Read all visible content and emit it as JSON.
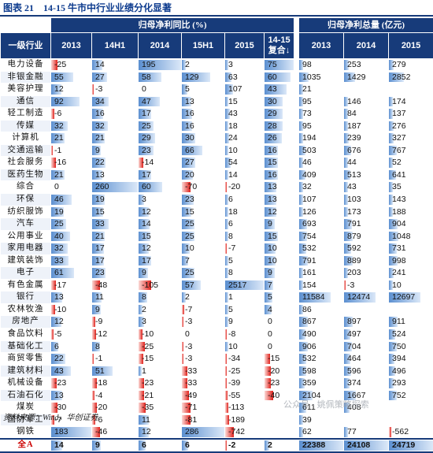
{
  "title": {
    "label": "图表 21",
    "text": "14-15 牛市中行业业绩分化显著"
  },
  "header": {
    "group_left": "归母净利同比 (%)",
    "group_right": "归母净利总量 (亿元)",
    "industry": "一级行业",
    "growth_cols": [
      "2013",
      "14H1",
      "2014",
      "15H1",
      "2015"
    ],
    "compound": "14-15\n复合↓",
    "profit_cols": [
      "2013",
      "2014",
      "2015"
    ]
  },
  "rows": [
    {
      "name": "电力设备",
      "g": [
        -25,
        14,
        195,
        2,
        3
      ],
      "c": 75,
      "p": [
        98,
        253,
        279
      ]
    },
    {
      "name": "非银金融",
      "g": [
        55,
        27,
        58,
        129,
        63
      ],
      "c": 60,
      "p": [
        1035,
        1429,
        2852
      ]
    },
    {
      "name": "美容护理",
      "g": [
        12,
        -3,
        0,
        5,
        107
      ],
      "c": 43,
      "p": [
        21,
        "",
        ""
      ]
    },
    {
      "name": "通信",
      "g": [
        92,
        34,
        47,
        13,
        15
      ],
      "c": 30,
      "p": [
        95,
        146,
        174
      ]
    },
    {
      "name": "轻工制造",
      "g": [
        -6,
        16,
        17,
        16,
        43
      ],
      "c": 29,
      "p": [
        73,
        84,
        137
      ]
    },
    {
      "name": "传媒",
      "g": [
        32,
        32,
        25,
        16,
        18
      ],
      "c": 28,
      "p": [
        95,
        187,
        276
      ]
    },
    {
      "name": "计算机",
      "g": [
        21,
        21,
        29,
        30,
        24
      ],
      "c": 26,
      "p": [
        194,
        239,
        327
      ]
    },
    {
      "name": "交通运输",
      "g": [
        -1,
        9,
        23,
        66,
        10
      ],
      "c": 16,
      "p": [
        503,
        676,
        767
      ]
    },
    {
      "name": "社会服务",
      "g": [
        -16,
        22,
        -14,
        27,
        54
      ],
      "c": 15,
      "p": [
        46,
        44,
        52
      ]
    },
    {
      "name": "医药生物",
      "g": [
        21,
        13,
        17,
        20,
        14
      ],
      "c": 16,
      "p": [
        409,
        513,
        641
      ]
    },
    {
      "name": "综合",
      "g": [
        0,
        260,
        60,
        -70,
        -20
      ],
      "c": 13,
      "p": [
        32,
        43,
        35
      ]
    },
    {
      "name": "环保",
      "g": [
        46,
        19,
        3,
        23,
        6
      ],
      "c": 13,
      "p": [
        107,
        103,
        143
      ]
    },
    {
      "name": "纺织服饰",
      "g": [
        19,
        15,
        12,
        15,
        18
      ],
      "c": 12,
      "p": [
        126,
        173,
        188
      ]
    },
    {
      "name": "汽车",
      "g": [
        25,
        33,
        14,
        25,
        6
      ],
      "c": 9,
      "p": [
        693,
        791,
        904
      ]
    },
    {
      "name": "公用事业",
      "g": [
        40,
        21,
        15,
        25,
        8
      ],
      "c": 15,
      "p": [
        754,
        879,
        1048
      ]
    },
    {
      "name": "家用电器",
      "g": [
        32,
        17,
        12,
        10,
        -7
      ],
      "c": 10,
      "p": [
        532,
        592,
        731
      ]
    },
    {
      "name": "建筑装饰",
      "g": [
        33,
        17,
        17,
        7,
        5
      ],
      "c": 10,
      "p": [
        791,
        889,
        998
      ]
    },
    {
      "name": "电子",
      "g": [
        61,
        23,
        9,
        25,
        8
      ],
      "c": 9,
      "p": [
        161,
        203,
        241
      ]
    },
    {
      "name": "有色金属",
      "g": [
        -17,
        -48,
        -105,
        57,
        2517
      ],
      "c": 7,
      "p": [
        154,
        -3,
        10
      ]
    },
    {
      "name": "银行",
      "g": [
        13,
        11,
        8,
        2,
        1
      ],
      "c": 5,
      "p": [
        11584,
        12474,
        12697
      ]
    },
    {
      "name": "农林牧渔",
      "g": [
        -10,
        9,
        2,
        -7,
        5
      ],
      "c": 4,
      "p": [
        86,
        "",
        ""
      ]
    },
    {
      "name": "房地产",
      "g": [
        12,
        -9,
        3,
        -3,
        9
      ],
      "c": 0,
      "p": [
        867,
        897,
        911
      ]
    },
    {
      "name": "食品饮料",
      "g": [
        -5,
        -12,
        -10,
        0,
        -8
      ],
      "c": 0,
      "p": [
        490,
        497,
        524
      ]
    },
    {
      "name": "基础化工",
      "g": [
        6,
        8,
        -25,
        -3,
        10
      ],
      "c": 0,
      "p": [
        906,
        704,
        750
      ]
    },
    {
      "name": "商贸零售",
      "g": [
        22,
        -1,
        -15,
        -3,
        -34
      ],
      "c": -15,
      "p": [
        532,
        464,
        394
      ]
    },
    {
      "name": "建筑材料",
      "g": [
        43,
        51,
        1,
        -33,
        -25
      ],
      "c": -20,
      "p": [
        598,
        596,
        496
      ]
    },
    {
      "name": "机械设备",
      "g": [
        -23,
        -18,
        -23,
        -33,
        -39
      ],
      "c": -23,
      "p": [
        359,
        374,
        293
      ]
    },
    {
      "name": "石油石化",
      "g": [
        13,
        -4,
        -21,
        -49,
        -55
      ],
      "c": -40,
      "p": [
        2104,
        1667,
        752
      ]
    },
    {
      "name": "煤炭",
      "g": [
        -30,
        -20,
        -35,
        -71,
        -113
      ],
      "c": "",
      "p": [
        611,
        408,
        ""
      ]
    },
    {
      "name": "国防军工",
      "g": [
        -7,
        -6,
        11,
        -81,
        -189
      ],
      "c": "",
      "p": [
        39,
        "",
        ""
      ]
    },
    {
      "name": "钢铁",
      "g": [
        183,
        -46,
        12,
        286,
        -742
      ],
      "c": "",
      "p": [
        62,
        77,
        -562
      ]
    },
    {
      "name": "全A",
      "g": [
        14,
        9,
        6,
        6,
        -2
      ],
      "c": 2,
      "p": [
        22388,
        24108,
        24719
      ]
    }
  ],
  "source": "资料来源：Wind，华创证券",
  "watermark": "公众号 · 姚佩策略探索"
}
